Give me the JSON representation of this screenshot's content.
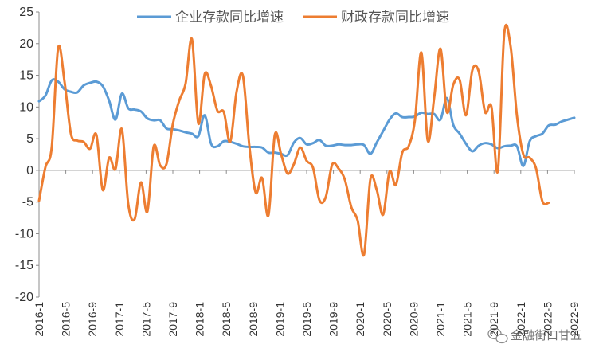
{
  "chart_data": {
    "type": "line",
    "title": "",
    "xlabel": "",
    "ylabel": "",
    "ylim": [
      -20,
      25
    ],
    "yticks": [
      25,
      20,
      15,
      10,
      5,
      0,
      -5,
      -10,
      -15,
      -20
    ],
    "x_tick_labels": [
      "2016-1",
      "2016-5",
      "2016-9",
      "2017-1",
      "2017-5",
      "2017-9",
      "2018-1",
      "2018-5",
      "2018-9",
      "2019-1",
      "2019-5",
      "2019-9",
      "2020-1",
      "2020-5",
      "2020-9",
      "2021-1",
      "2021-5",
      "2021-9",
      "2022-1",
      "2022-5",
      "2022-9"
    ],
    "x_start": "2016-01",
    "x_end": "2022-09",
    "legend_position": "top",
    "series": [
      {
        "name": "企业存款同比增速",
        "color": "#5B9BD5",
        "values": [
          10.9,
          11.8,
          14.2,
          14.0,
          12.8,
          12.4,
          12.3,
          13.4,
          13.8,
          14.0,
          13.3,
          11.0,
          8.0,
          12.1,
          9.8,
          9.6,
          9.3,
          8.2,
          7.9,
          7.9,
          6.6,
          6.5,
          6.3,
          6.0,
          5.8,
          5.4,
          8.7,
          4.2,
          3.8,
          4.6,
          4.5,
          4.2,
          3.8,
          3.7,
          3.7,
          3.6,
          2.8,
          2.8,
          2.6,
          2.4,
          4.4,
          5.1,
          4.1,
          4.3,
          4.8,
          3.9,
          3.9,
          4.1,
          4.0,
          4.0,
          4.1,
          4.0,
          2.6,
          4.4,
          6.2,
          8.0,
          9.0,
          8.4,
          8.4,
          8.5,
          9.1,
          8.9,
          8.9,
          8.0,
          11.4,
          7.2,
          5.8,
          4.2,
          3.0,
          3.9,
          4.3,
          4.1,
          3.5,
          3.8,
          3.9,
          3.8,
          0.7,
          4.6,
          5.4,
          5.8,
          7.1,
          7.2,
          7.7,
          8.0,
          8.3
        ]
      },
      {
        "name": "财政存款同比增速",
        "color": "#ED7D31",
        "values": [
          -4.8,
          0.5,
          3.7,
          19.3,
          14.0,
          5.8,
          4.7,
          4.5,
          3.4,
          5.6,
          -3.1,
          2.0,
          0.2,
          6.5,
          -5.3,
          -7.7,
          -1.9,
          -6.5,
          3.8,
          0.8,
          1.0,
          7.3,
          11.0,
          13.7,
          20.7,
          7.4,
          15.2,
          13.3,
          9.4,
          9.2,
          4.5,
          12.4,
          14.9,
          3.9,
          -3.5,
          -1.2,
          -7.1,
          5.6,
          2.5,
          -0.5,
          1.0,
          3.6,
          1.5,
          0.4,
          -4.7,
          -4.2,
          0.9,
          0.3,
          -1.5,
          -5.8,
          -7.9,
          -13.3,
          -1.4,
          -3.1,
          -7.0,
          -0.2,
          -2.3,
          2.8,
          3.8,
          8.0,
          18.6,
          4.7,
          11.4,
          19.2,
          9.2,
          13.5,
          14.3,
          8.7,
          15.8,
          15.6,
          9.2,
          10.0,
          -0.1,
          21.5,
          19.6,
          8.6,
          2.5,
          2.0,
          0.3,
          -4.9,
          -5.1
        ]
      }
    ]
  },
  "watermark": {
    "text": "金融街口甘五",
    "icon": "wechat-icon"
  }
}
